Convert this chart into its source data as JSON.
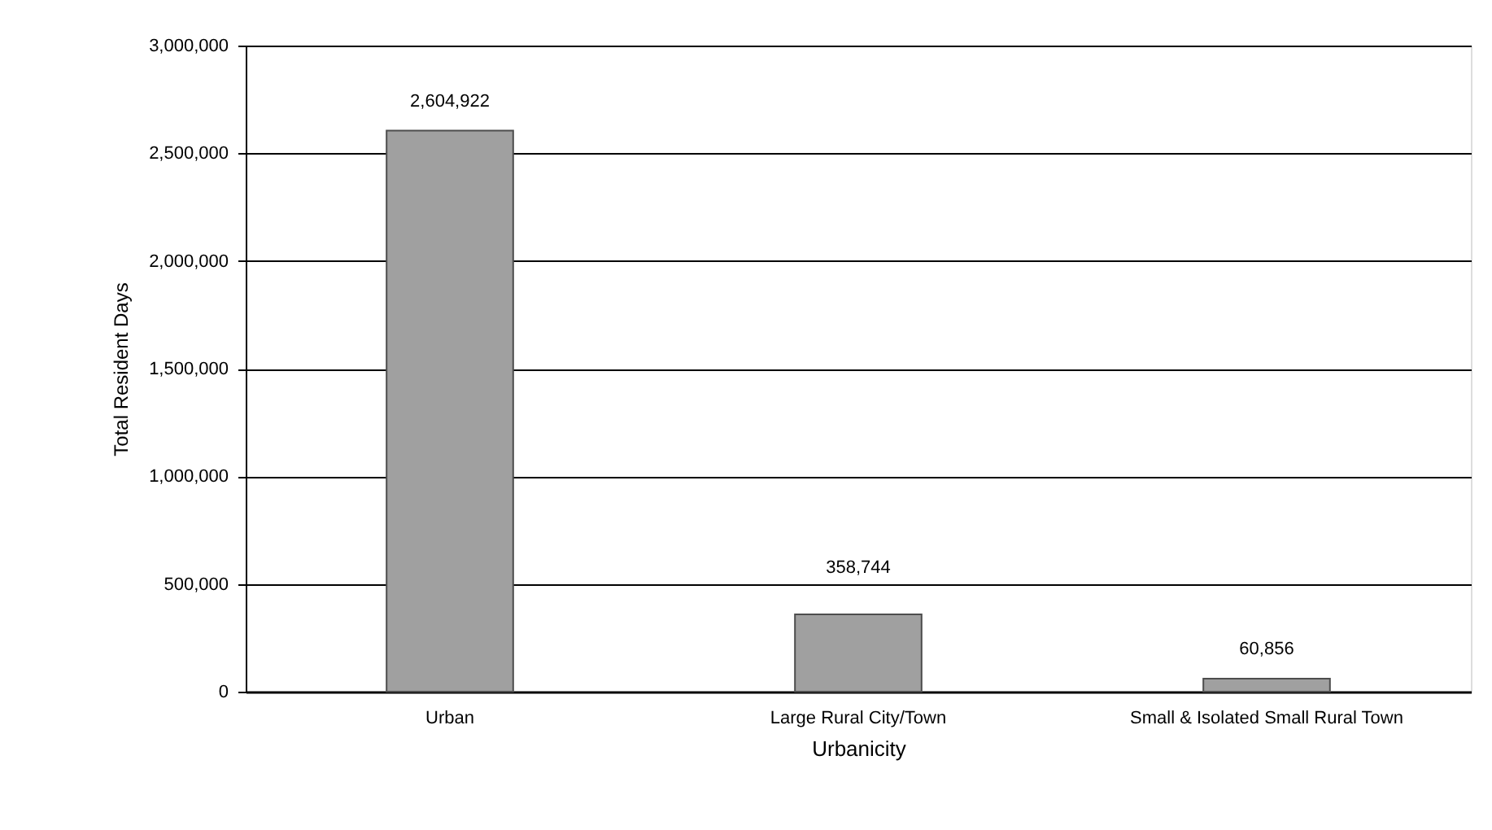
{
  "chart_data": {
    "type": "bar",
    "xlabel": "Urbanicity",
    "ylabel": "Total Resident Days",
    "categories": [
      "Urban",
      "Large Rural City/Town",
      "Small & Isolated Small Rural Town"
    ],
    "values": [
      2604922,
      358744,
      60856
    ],
    "value_labels": [
      "2,604,922",
      "358,744",
      "60,856"
    ],
    "color": "#a0a0a0",
    "ylim": [
      0,
      3000000
    ],
    "yticks": [
      {
        "value": 0,
        "label": "0"
      },
      {
        "value": 500000,
        "label": "500,000"
      },
      {
        "value": 1000000,
        "label": "1,000,000"
      },
      {
        "value": 1500000,
        "label": "1,500,000"
      },
      {
        "value": 2000000,
        "label": "2,000,000"
      },
      {
        "value": 2500000,
        "label": "2,500,000"
      },
      {
        "value": 3000000,
        "label": "3,000,000"
      }
    ],
    "grid": "y"
  }
}
